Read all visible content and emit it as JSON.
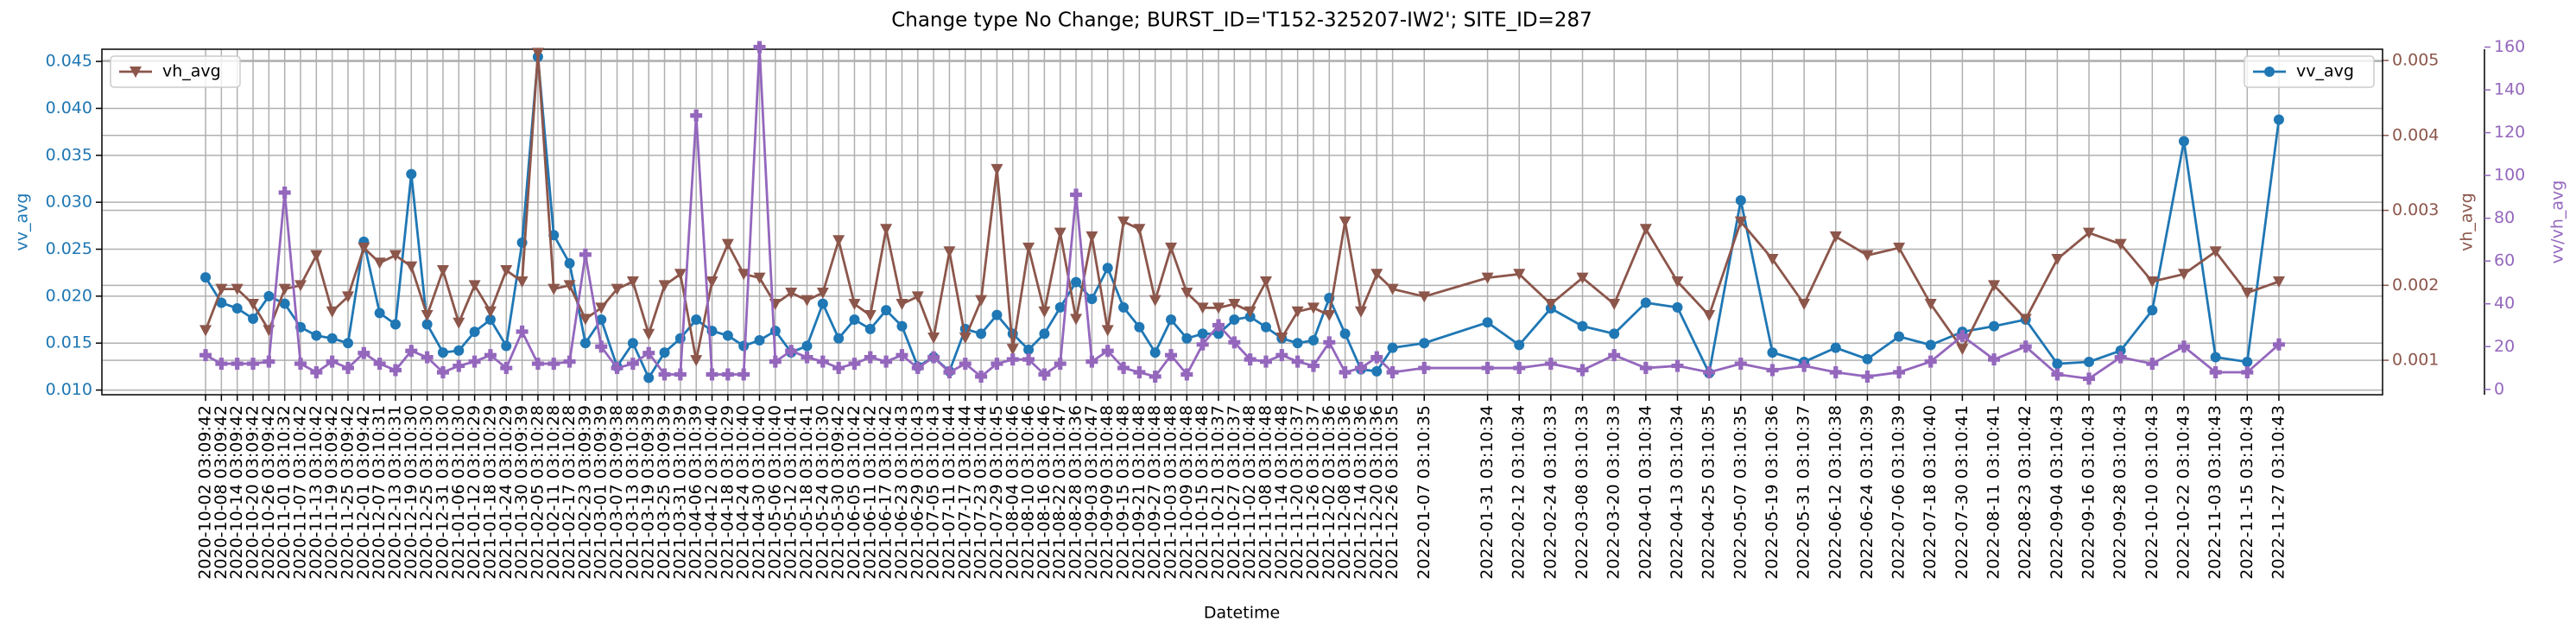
{
  "chart_data": {
    "type": "line",
    "title": "Change type No Change; BURST_ID='T152-325207-IW2'; SITE_ID=287",
    "xlabel": "Datetime",
    "ylabel": "vv_avg",
    "y2label": "vh_avg",
    "y3label": "vv/vh_avg",
    "grid": true,
    "x": [
      "2020-10-02 03:09:42",
      "2020-10-08 03:09:42",
      "2020-10-14 03:09:42",
      "2020-10-20 03:09:42",
      "2020-10-26 03:09:42",
      "2020-11-01 03:10:32",
      "2020-11-07 03:10:42",
      "2020-11-13 03:10:42",
      "2020-11-19 03:09:42",
      "2020-11-25 03:09:42",
      "2020-12-01 03:09:42",
      "2020-12-07 03:10:31",
      "2020-12-13 03:10:31",
      "2020-12-19 03:10:30",
      "2020-12-25 03:10:30",
      "2020-12-31 03:10:30",
      "2021-01-06 03:10:30",
      "2021-01-12 03:10:29",
      "2021-01-18 03:10:29",
      "2021-01-24 03:10:29",
      "2021-01-30 03:09:39",
      "2021-02-05 03:10:28",
      "2021-02-11 03:10:28",
      "2021-02-17 03:10:28",
      "2021-02-23 03:09:39",
      "2021-03-01 03:09:39",
      "2021-03-07 03:09:38",
      "2021-03-13 03:10:38",
      "2021-03-19 03:09:39",
      "2021-03-25 03:09:39",
      "2021-03-31 03:10:39",
      "2021-04-06 03:10:39",
      "2021-04-12 03:10:40",
      "2021-04-18 03:10:29",
      "2021-04-24 03:10:40",
      "2021-04-30 03:10:40",
      "2021-05-06 03:10:40",
      "2021-05-12 03:10:41",
      "2021-05-18 03:10:41",
      "2021-05-24 03:10:30",
      "2021-05-30 03:09:42",
      "2021-06-05 03:10:42",
      "2021-06-11 03:10:42",
      "2021-06-17 03:10:42",
      "2021-06-23 03:10:43",
      "2021-06-29 03:10:43",
      "2021-07-05 03:10:43",
      "2021-07-11 03:10:44",
      "2021-07-17 03:10:44",
      "2021-07-23 03:10:44",
      "2021-07-29 03:10:45",
      "2021-08-04 03:10:46",
      "2021-08-10 03:10:46",
      "2021-08-16 03:10:46",
      "2021-08-22 03:10:47",
      "2021-08-28 03:10:36",
      "2021-09-03 03:10:47",
      "2021-09-09 03:10:48",
      "2021-09-15 03:10:48",
      "2021-09-21 03:10:48",
      "2021-09-27 03:10:48",
      "2021-10-03 03:10:48",
      "2021-10-09 03:10:48",
      "2021-10-15 03:10:48",
      "2021-10-21 03:10:37",
      "2021-10-27 03:10:37",
      "2021-11-02 03:10:48",
      "2021-11-08 03:10:48",
      "2021-11-14 03:10:48",
      "2021-11-20 03:10:37",
      "2021-11-26 03:10:37",
      "2021-12-02 03:10:36",
      "2021-12-08 03:10:36",
      "2021-12-14 03:10:36",
      "2021-12-20 03:10:36",
      "2021-12-26 03:10:35",
      "2022-01-07 03:10:35",
      "2022-01-31 03:10:34",
      "2022-02-12 03:10:34",
      "2022-02-24 03:10:33",
      "2022-03-08 03:10:33",
      "2022-03-20 03:10:33",
      "2022-04-01 03:10:34",
      "2022-04-13 03:10:34",
      "2022-04-25 03:10:35",
      "2022-05-07 03:10:35",
      "2022-05-19 03:10:36",
      "2022-05-31 03:10:37",
      "2022-06-12 03:10:38",
      "2022-06-24 03:10:39",
      "2022-07-06 03:10:39",
      "2022-07-18 03:10:40",
      "2022-07-30 03:10:41",
      "2022-08-11 03:10:41",
      "2022-08-23 03:10:42",
      "2022-09-04 03:10:43",
      "2022-09-16 03:10:43",
      "2022-09-28 03:10:43",
      "2022-10-10 03:10:43",
      "2022-10-22 03:10:43",
      "2022-11-03 03:10:43",
      "2022-11-15 03:10:43",
      "2022-11-27 03:10:43"
    ],
    "ylim": [
      0.0095,
      0.0463
    ],
    "yticks": [
      {
        "value": 0.01,
        "label": "0.010"
      },
      {
        "value": 0.015,
        "label": "0.015"
      },
      {
        "value": 0.02,
        "label": "0.020"
      },
      {
        "value": 0.025,
        "label": "0.025"
      },
      {
        "value": 0.03,
        "label": "0.030"
      },
      {
        "value": 0.035,
        "label": "0.035"
      },
      {
        "value": 0.04,
        "label": "0.040"
      },
      {
        "value": 0.045,
        "label": "0.045"
      }
    ],
    "y2lim": [
      0.00054,
      0.00515
    ],
    "y2ticks": [
      0.001,
      0.002,
      0.003,
      0.004,
      0.005
    ],
    "y3lim": [
      -2.5,
      159
    ],
    "y3ticks": [
      0,
      20,
      40,
      60,
      80,
      100,
      120,
      140,
      160
    ],
    "series": [
      {
        "name": "vv_avg",
        "color": "#1f77b4",
        "marker": "o",
        "axis": "y",
        "legend": "upper right",
        "values": [
          0.022,
          0.0193,
          0.0187,
          0.0176,
          0.02,
          0.0192,
          0.0167,
          0.0158,
          0.0155,
          0.015,
          0.0258,
          0.0182,
          0.017,
          0.033,
          0.017,
          0.014,
          0.0142,
          0.0162,
          0.0175,
          0.0147,
          0.0257,
          0.0455,
          0.0265,
          0.0235,
          0.015,
          0.0175,
          0.0125,
          0.015,
          0.0113,
          0.014,
          0.0155,
          0.0175,
          0.0163,
          0.0158,
          0.0147,
          0.0153,
          0.0163,
          0.014,
          0.0147,
          0.0192,
          0.0155,
          0.0175,
          0.0165,
          0.0185,
          0.0168,
          0.0125,
          0.0135,
          0.012,
          0.0165,
          0.016,
          0.018,
          0.016,
          0.0143,
          0.016,
          0.0188,
          0.0215,
          0.0197,
          0.023,
          0.0188,
          0.0167,
          0.014,
          0.0175,
          0.0155,
          0.016,
          0.016,
          0.0175,
          0.0178,
          0.0167,
          0.0155,
          0.015,
          0.0153,
          0.0198,
          0.016,
          0.0122,
          0.012,
          0.0145,
          0.015,
          0.0172,
          0.0148,
          0.0187,
          0.0168,
          0.016,
          0.0193,
          0.0188,
          0.0118,
          0.0302,
          0.014,
          0.013,
          0.0145,
          0.0133,
          0.0157,
          0.0148,
          0.0162,
          0.0168,
          0.0175,
          0.0128,
          0.013,
          0.0142,
          0.0185,
          0.0365,
          0.0135,
          0.013,
          0.0388
        ]
      },
      {
        "name": "vh_avg",
        "color": "#8c564b",
        "marker": "v",
        "axis": "y2",
        "legend": "upper left",
        "values": [
          0.0014,
          0.00195,
          0.00195,
          0.00175,
          0.0014,
          0.00195,
          0.002,
          0.0024,
          0.00165,
          0.00185,
          0.0025,
          0.0023,
          0.0024,
          0.00225,
          0.0016,
          0.0022,
          0.0015,
          0.002,
          0.00165,
          0.0022,
          0.00205,
          0.0051,
          0.00195,
          0.002,
          0.00155,
          0.0017,
          0.00195,
          0.00205,
          0.00135,
          0.002,
          0.00215,
          0.001,
          0.00205,
          0.00255,
          0.00215,
          0.0021,
          0.00175,
          0.0019,
          0.0018,
          0.0019,
          0.0026,
          0.00175,
          0.0016,
          0.00275,
          0.00175,
          0.00185,
          0.0013,
          0.00245,
          0.0013,
          0.0018,
          0.00355,
          0.00115,
          0.0025,
          0.00165,
          0.0027,
          0.00155,
          0.00265,
          0.0014,
          0.00285,
          0.00275,
          0.0018,
          0.0025,
          0.0019,
          0.0017,
          0.0017,
          0.00175,
          0.00165,
          0.00205,
          0.0013,
          0.00165,
          0.0017,
          0.0016,
          0.00285,
          0.00165,
          0.00215,
          0.00195,
          0.00185,
          0.0021,
          0.00215,
          0.00175,
          0.0021,
          0.00175,
          0.00275,
          0.00205,
          0.0016,
          0.00285,
          0.00235,
          0.00175,
          0.00265,
          0.0024,
          0.0025,
          0.00175,
          0.00115,
          0.002,
          0.00155,
          0.00235,
          0.0027,
          0.00255,
          0.00205,
          0.00215,
          0.00245,
          0.0019,
          0.00205
        ]
      },
      {
        "name": "vv/vh_avg",
        "color": "#9467bd",
        "marker": "P",
        "axis": "y3",
        "values": [
          16,
          12,
          12,
          12,
          13,
          92,
          12,
          8,
          13,
          10,
          17,
          12,
          9,
          18,
          15,
          8,
          11,
          13,
          16,
          10,
          27,
          12,
          12,
          13,
          63,
          20,
          10,
          12,
          17,
          7,
          7,
          128,
          7,
          7,
          7,
          160,
          13,
          18,
          15,
          13,
          10,
          12,
          15,
          13,
          16,
          10,
          15,
          8,
          12,
          6,
          12,
          14,
          14,
          7,
          12,
          91,
          13,
          18,
          10,
          8,
          6,
          16,
          7,
          21,
          30,
          22,
          14,
          13,
          16,
          13,
          11,
          22,
          8,
          10,
          15,
          8,
          10,
          10,
          10,
          12,
          9,
          16,
          10,
          11,
          8,
          12,
          9,
          11,
          8,
          6,
          8,
          13,
          25,
          14,
          20,
          7,
          5,
          15,
          12,
          20,
          8,
          8,
          21
        ]
      }
    ]
  }
}
